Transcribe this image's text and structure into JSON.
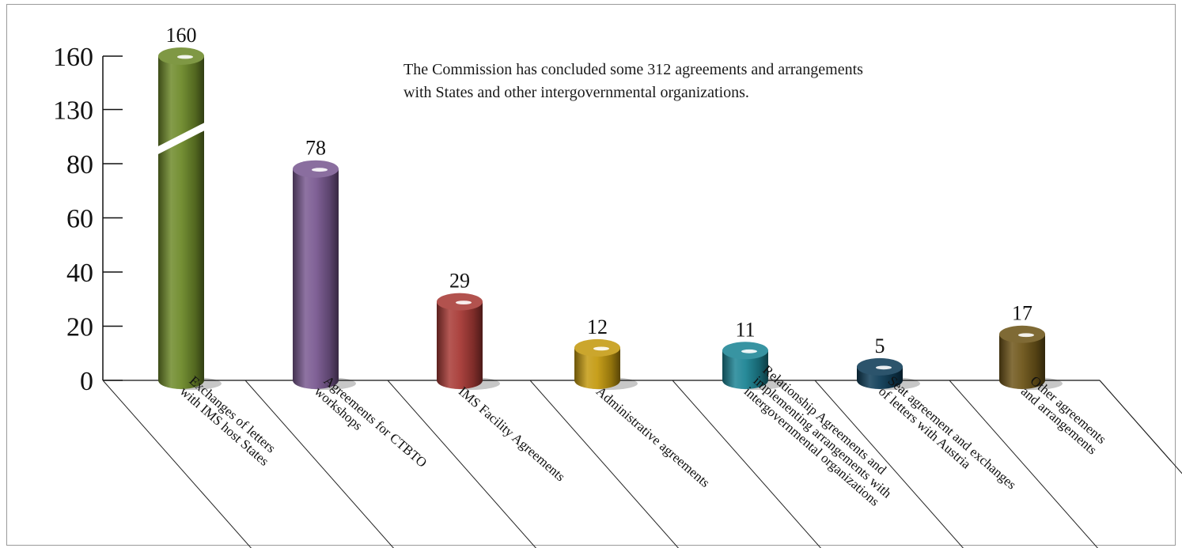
{
  "chart_data": {
    "type": "bar",
    "title": "",
    "xlabel": "",
    "ylabel": "",
    "ylim": [
      0,
      160
    ],
    "yticks": [
      "0",
      "20",
      "40",
      "60",
      "80",
      "130",
      "160"
    ],
    "axis_break": true,
    "grid": false,
    "categories": [
      [
        "Exchanges of letters",
        "with IMS host States"
      ],
      [
        "Agreements for  CTBTO",
        "workshops"
      ],
      [
        "IMS Facility Agreements"
      ],
      [
        "Administrative agreements"
      ],
      [
        "Relationship Agreements and",
        "implementing arrangements with",
        "intergovernmental organizations"
      ],
      [
        "Seat agreement and exchanges",
        "of letters with Austria"
      ],
      [
        "Other agreements",
        "and arrangements"
      ]
    ],
    "values": [
      160,
      78,
      29,
      12,
      11,
      5,
      17
    ],
    "value_labels": [
      "160",
      "78",
      "29",
      "12",
      "11",
      "5",
      "17"
    ],
    "colors": [
      "#6e8a2a",
      "#7a5a92",
      "#a83a36",
      "#c49a10",
      "#1d8595",
      "#0f3d58",
      "#6e5619"
    ],
    "annotation": {
      "line1": "The Commission has concluded some 312 agreements and arrangements",
      "line2": "with States and other intergovernmental organizations."
    }
  }
}
